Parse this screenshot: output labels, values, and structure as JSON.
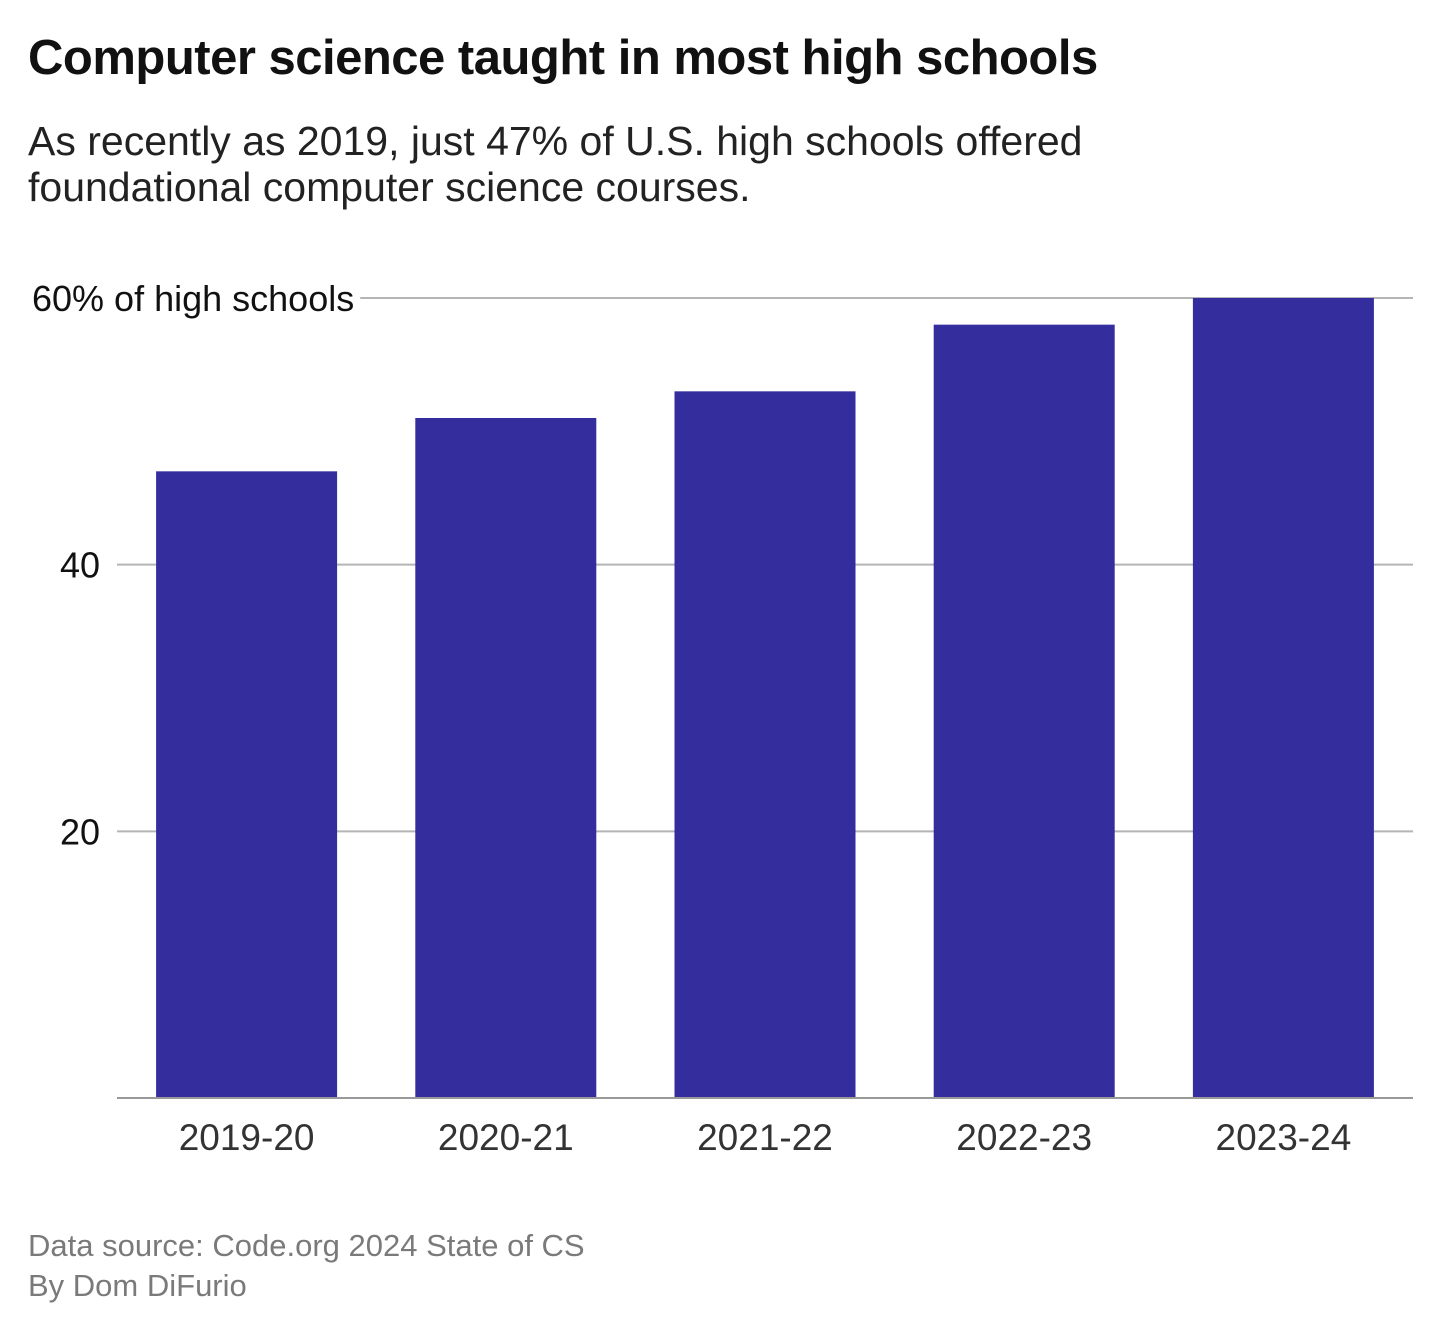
{
  "chart_data": {
    "type": "bar",
    "title": "Computer science taught in most high schools",
    "subtitle": "As recently as 2019, just 47% of U.S. high schools offered foundational computer science courses.",
    "categories": [
      "2019-20",
      "2020-21",
      "2021-22",
      "2022-23",
      "2023-24"
    ],
    "values": [
      47,
      51,
      53,
      58,
      60
    ],
    "ylabel": "",
    "ylim": [
      0,
      60
    ],
    "yticks": [
      20,
      40,
      60
    ],
    "ytick_labels": [
      "20",
      "40",
      "60% of high schools"
    ],
    "grid": true,
    "bar_color": "#332d9e"
  },
  "footer": {
    "source": "Data source: Code.org 2024 State of CS",
    "byline": "By Dom DiFurio"
  }
}
